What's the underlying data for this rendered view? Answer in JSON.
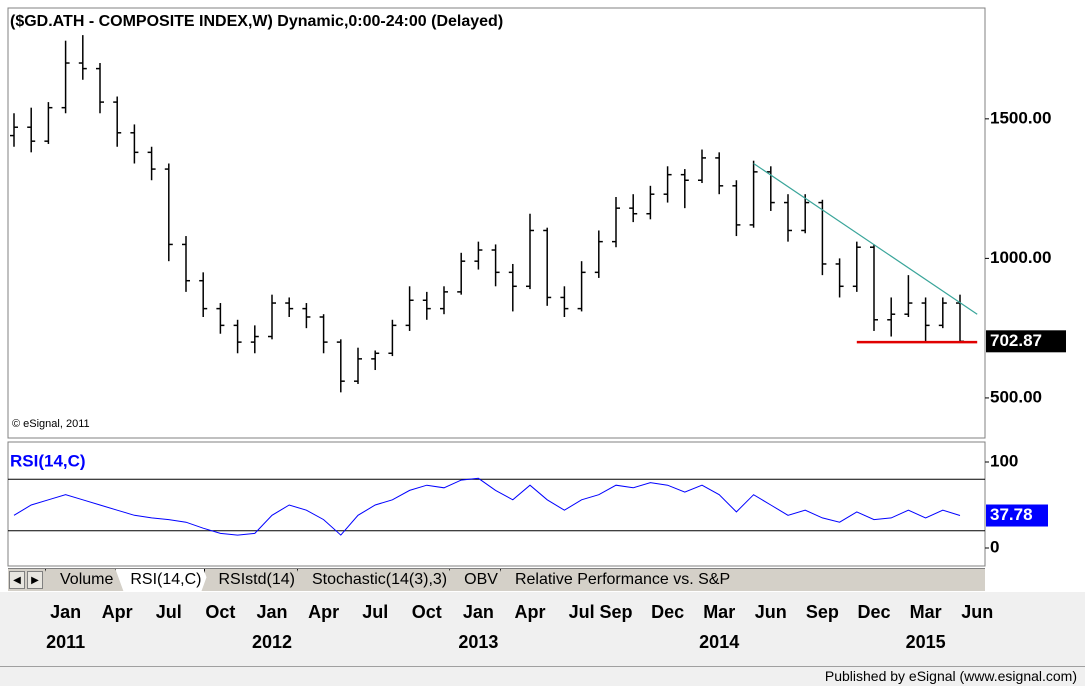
{
  "chart_data": {
    "type": "ohlc",
    "title": "($GD.ATH - COMPOSITE INDEX,W) Dynamic,0:00-24:00 (Delayed)",
    "watermark": "© eSignal, 2011",
    "x": [
      "2010-10",
      "2010-11",
      "2010-12",
      "2011-01",
      "2011-02",
      "2011-03",
      "2011-04",
      "2011-05",
      "2011-06",
      "2011-07",
      "2011-08",
      "2011-09",
      "2011-10",
      "2011-11",
      "2011-12",
      "2012-01",
      "2012-02",
      "2012-03",
      "2012-04",
      "2012-05",
      "2012-06",
      "2012-07",
      "2012-08",
      "2012-09",
      "2012-10",
      "2012-11",
      "2012-12",
      "2013-01",
      "2013-02",
      "2013-03",
      "2013-04",
      "2013-05",
      "2013-06",
      "2013-07",
      "2013-08",
      "2013-09",
      "2013-10",
      "2013-11",
      "2013-12",
      "2014-01",
      "2014-02",
      "2014-03",
      "2014-04",
      "2014-05",
      "2014-06",
      "2014-07",
      "2014-08",
      "2014-09",
      "2014-10",
      "2014-11",
      "2014-12",
      "2015-01",
      "2015-02",
      "2015-03",
      "2015-04",
      "2015-05"
    ],
    "open": [
      1440,
      1470,
      1420,
      1540,
      1700,
      1680,
      1560,
      1450,
      1380,
      1320,
      1050,
      920,
      820,
      760,
      700,
      720,
      840,
      820,
      790,
      700,
      560,
      640,
      660,
      760,
      850,
      820,
      880,
      990,
      1030,
      950,
      900,
      1100,
      860,
      820,
      950,
      1060,
      1180,
      1160,
      1230,
      1300,
      1280,
      1360,
      1260,
      1120,
      1310,
      1200,
      1100,
      1200,
      980,
      900,
      1040,
      780,
      800,
      840,
      760,
      840
    ],
    "high": [
      1520,
      1540,
      1560,
      1780,
      1800,
      1700,
      1580,
      1480,
      1400,
      1340,
      1080,
      950,
      840,
      780,
      760,
      870,
      860,
      840,
      800,
      710,
      680,
      670,
      780,
      900,
      880,
      900,
      1020,
      1060,
      1050,
      980,
      1160,
      1110,
      900,
      990,
      1100,
      1220,
      1230,
      1260,
      1330,
      1320,
      1390,
      1380,
      1280,
      1350,
      1330,
      1230,
      1230,
      1210,
      1000,
      1060,
      1050,
      860,
      940,
      860,
      860,
      870
    ],
    "low": [
      1400,
      1380,
      1410,
      1520,
      1640,
      1520,
      1400,
      1340,
      1280,
      990,
      880,
      790,
      730,
      660,
      660,
      710,
      790,
      750,
      660,
      520,
      550,
      600,
      650,
      740,
      780,
      800,
      870,
      960,
      900,
      810,
      890,
      830,
      790,
      810,
      930,
      1040,
      1130,
      1140,
      1200,
      1180,
      1270,
      1230,
      1080,
      1110,
      1170,
      1060,
      1090,
      940,
      860,
      880,
      740,
      720,
      790,
      700,
      750,
      700
    ],
    "close": [
      1470,
      1420,
      1540,
      1700,
      1680,
      1560,
      1450,
      1380,
      1320,
      1050,
      920,
      820,
      760,
      700,
      720,
      840,
      820,
      790,
      700,
      560,
      640,
      660,
      760,
      850,
      820,
      880,
      990,
      1030,
      950,
      900,
      1100,
      860,
      820,
      950,
      1060,
      1180,
      1160,
      1230,
      1300,
      1280,
      1360,
      1260,
      1120,
      1310,
      1200,
      1100,
      1200,
      980,
      900,
      1040,
      780,
      800,
      840,
      760,
      840,
      702.87
    ],
    "color": "#000000",
    "ylim": [
      360,
      1890
    ],
    "yticks": [
      {
        "value": 500,
        "label": "500.00"
      },
      {
        "value": 1000,
        "label": "1000.00"
      },
      {
        "value": 1500,
        "label": "1500.00"
      }
    ],
    "trendlines": [
      {
        "x": [
          "2014-05",
          "2015-06"
        ],
        "y": [
          1340,
          800
        ],
        "color": "#3aa59a"
      },
      {
        "x": [
          "2014-11",
          "2015-06"
        ],
        "y": [
          700,
          700
        ],
        "color": "#e00000"
      }
    ],
    "xticks": [
      {
        "value": "2011-01",
        "label": "Jan"
      },
      {
        "value": "2011-04",
        "label": "Apr"
      },
      {
        "value": "2011-07",
        "label": "Jul"
      },
      {
        "value": "2011-10",
        "label": "Oct"
      },
      {
        "value": "2012-01",
        "label": "Jan"
      },
      {
        "value": "2012-04",
        "label": "Apr"
      },
      {
        "value": "2012-07",
        "label": "Jul"
      },
      {
        "value": "2012-10",
        "label": "Oct"
      },
      {
        "value": "2013-01",
        "label": "Jan"
      },
      {
        "value": "2013-04",
        "label": "Apr"
      },
      {
        "value": "2013-07",
        "label": "Jul"
      },
      {
        "value": "2013-09",
        "label": "Sep"
      },
      {
        "value": "2013-12",
        "label": "Dec"
      },
      {
        "value": "2014-03",
        "label": "Mar"
      },
      {
        "value": "2014-06",
        "label": "Jun"
      },
      {
        "value": "2014-09",
        "label": "Sep"
      },
      {
        "value": "2014-12",
        "label": "Dec"
      },
      {
        "value": "2015-03",
        "label": "Mar"
      },
      {
        "value": "2015-06",
        "label": "Jun"
      }
    ],
    "year_labels": [
      {
        "value": "2011-01",
        "label": "2011"
      },
      {
        "value": "2012-01",
        "label": "2012"
      },
      {
        "value": "2013-01",
        "label": "2013"
      },
      {
        "value": "2014-03",
        "label": "2014"
      },
      {
        "value": "2015-03",
        "label": "2015"
      }
    ],
    "rsi": {
      "label": "RSI(14,C)",
      "color": "#0000ff",
      "values": [
        38,
        50,
        56,
        62,
        56,
        50,
        44,
        38,
        35,
        33,
        30,
        23,
        17,
        15,
        17,
        38,
        50,
        44,
        33,
        15,
        38,
        50,
        56,
        67,
        73,
        70,
        79,
        81,
        67,
        56,
        73,
        56,
        44,
        56,
        62,
        73,
        70,
        76,
        73,
        65,
        73,
        62,
        42,
        62,
        50,
        38,
        44,
        35,
        30,
        42,
        33,
        35,
        44,
        35,
        44,
        37.78
      ],
      "ylim": [
        0,
        100
      ],
      "yticks": [
        0,
        100
      ],
      "levels": [
        80,
        20
      ]
    }
  },
  "tabs": [
    "Volume",
    "RSI(14,C)",
    "RSIstd(14)",
    "Stochastic(14(3),3)",
    "OBV",
    "Relative Performance vs. S&P"
  ],
  "footer": "Published by eSignal (www.esignal.com)"
}
